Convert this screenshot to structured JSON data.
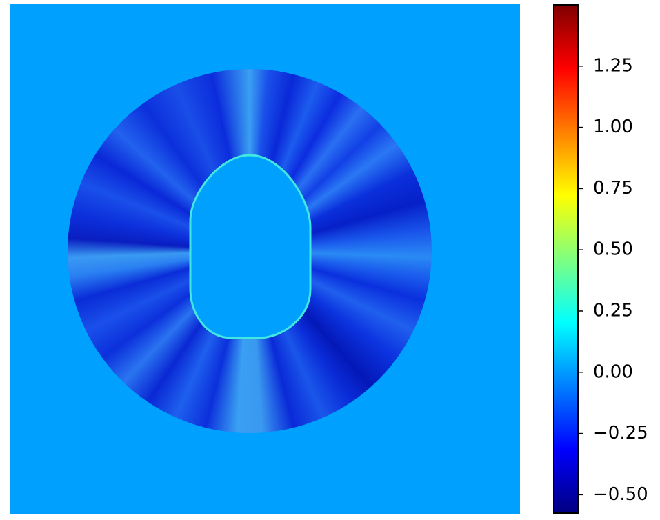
{
  "chart_data": {
    "type": "heatmap",
    "cmap": "jet",
    "clim": [
      -0.575,
      1.5
    ],
    "cticks": [
      {
        "value": -0.5,
        "label": "−0.50"
      },
      {
        "value": -0.25,
        "label": "−0.25"
      },
      {
        "value": 0,
        "label": "0.00"
      },
      0.25,
      {
        "value": 0.5,
        "label": "0.50"
      },
      0.75,
      {
        "value": 1,
        "label": "1.00"
      },
      1.25
    ]
  }
}
